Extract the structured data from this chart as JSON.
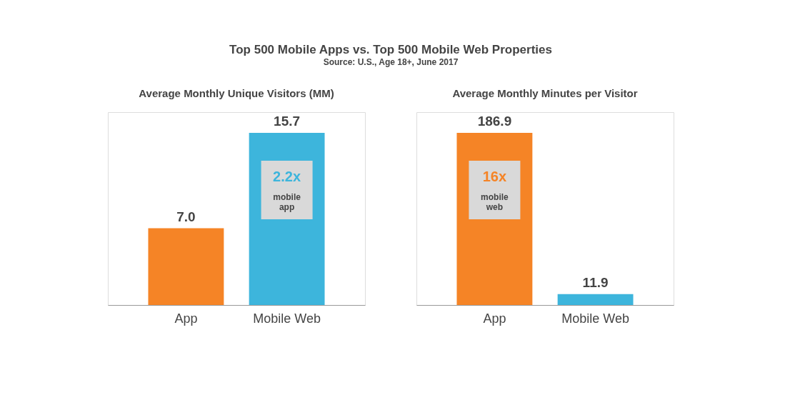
{
  "chart_data": [
    {
      "type": "bar",
      "title": "Top 500 Mobile Apps vs. Top 500 Mobile Web Properties",
      "subtitle": "Source: U.S., Age 18+, June 2017",
      "categories": [
        "App",
        "Mobile Web"
      ],
      "values": [
        7.0,
        15.7
      ],
      "colors": [
        "#f58426",
        "#3db5dc"
      ],
      "data_labels": true,
      "annotations": [
        "Average Monthly Unique Visitors (MM)",
        "2.2x\nmobile\napp"
      ],
      "value_labels": [
        "7.0",
        "15.7"
      ]
    },
    {
      "type": "bar",
      "title": "Average Monthly Minutes per Visitor",
      "categories": [
        "App",
        "Mobile Web"
      ],
      "values": [
        186.9,
        11.9
      ],
      "colors": [
        "#f58426",
        "#3db5dc"
      ],
      "data_labels": true,
      "annotations": [
        "16x\nmobile\nweb"
      ],
      "value_labels": [
        "186.9",
        "11.9"
      ]
    }
  ]
}
